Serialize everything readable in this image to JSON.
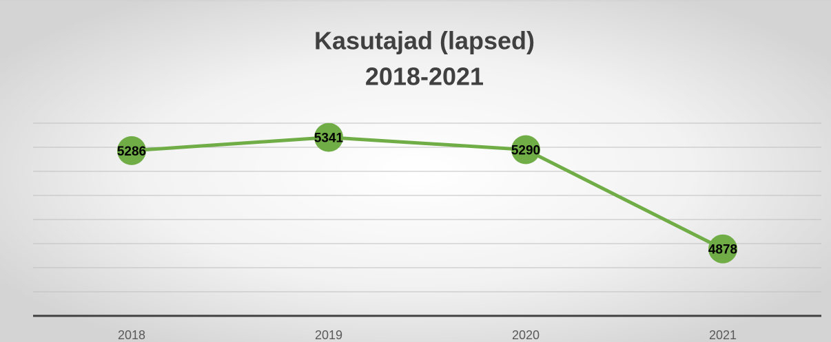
{
  "chart_data": {
    "type": "line",
    "title": [
      "Kasutajad (lapsed)",
      "2018-2021"
    ],
    "categories": [
      "2018",
      "2019",
      "2020",
      "2021"
    ],
    "series": [
      {
        "name": "Kasutajad (lapsed)",
        "color": "#70ad47",
        "values": [
          5286,
          5341,
          5290,
          4878
        ]
      }
    ],
    "ylim": [
      4600,
      5400
    ],
    "yticks": [
      4600,
      4700,
      4800,
      4900,
      5000,
      5100,
      5200,
      5300,
      5400
    ],
    "grid": true
  }
}
